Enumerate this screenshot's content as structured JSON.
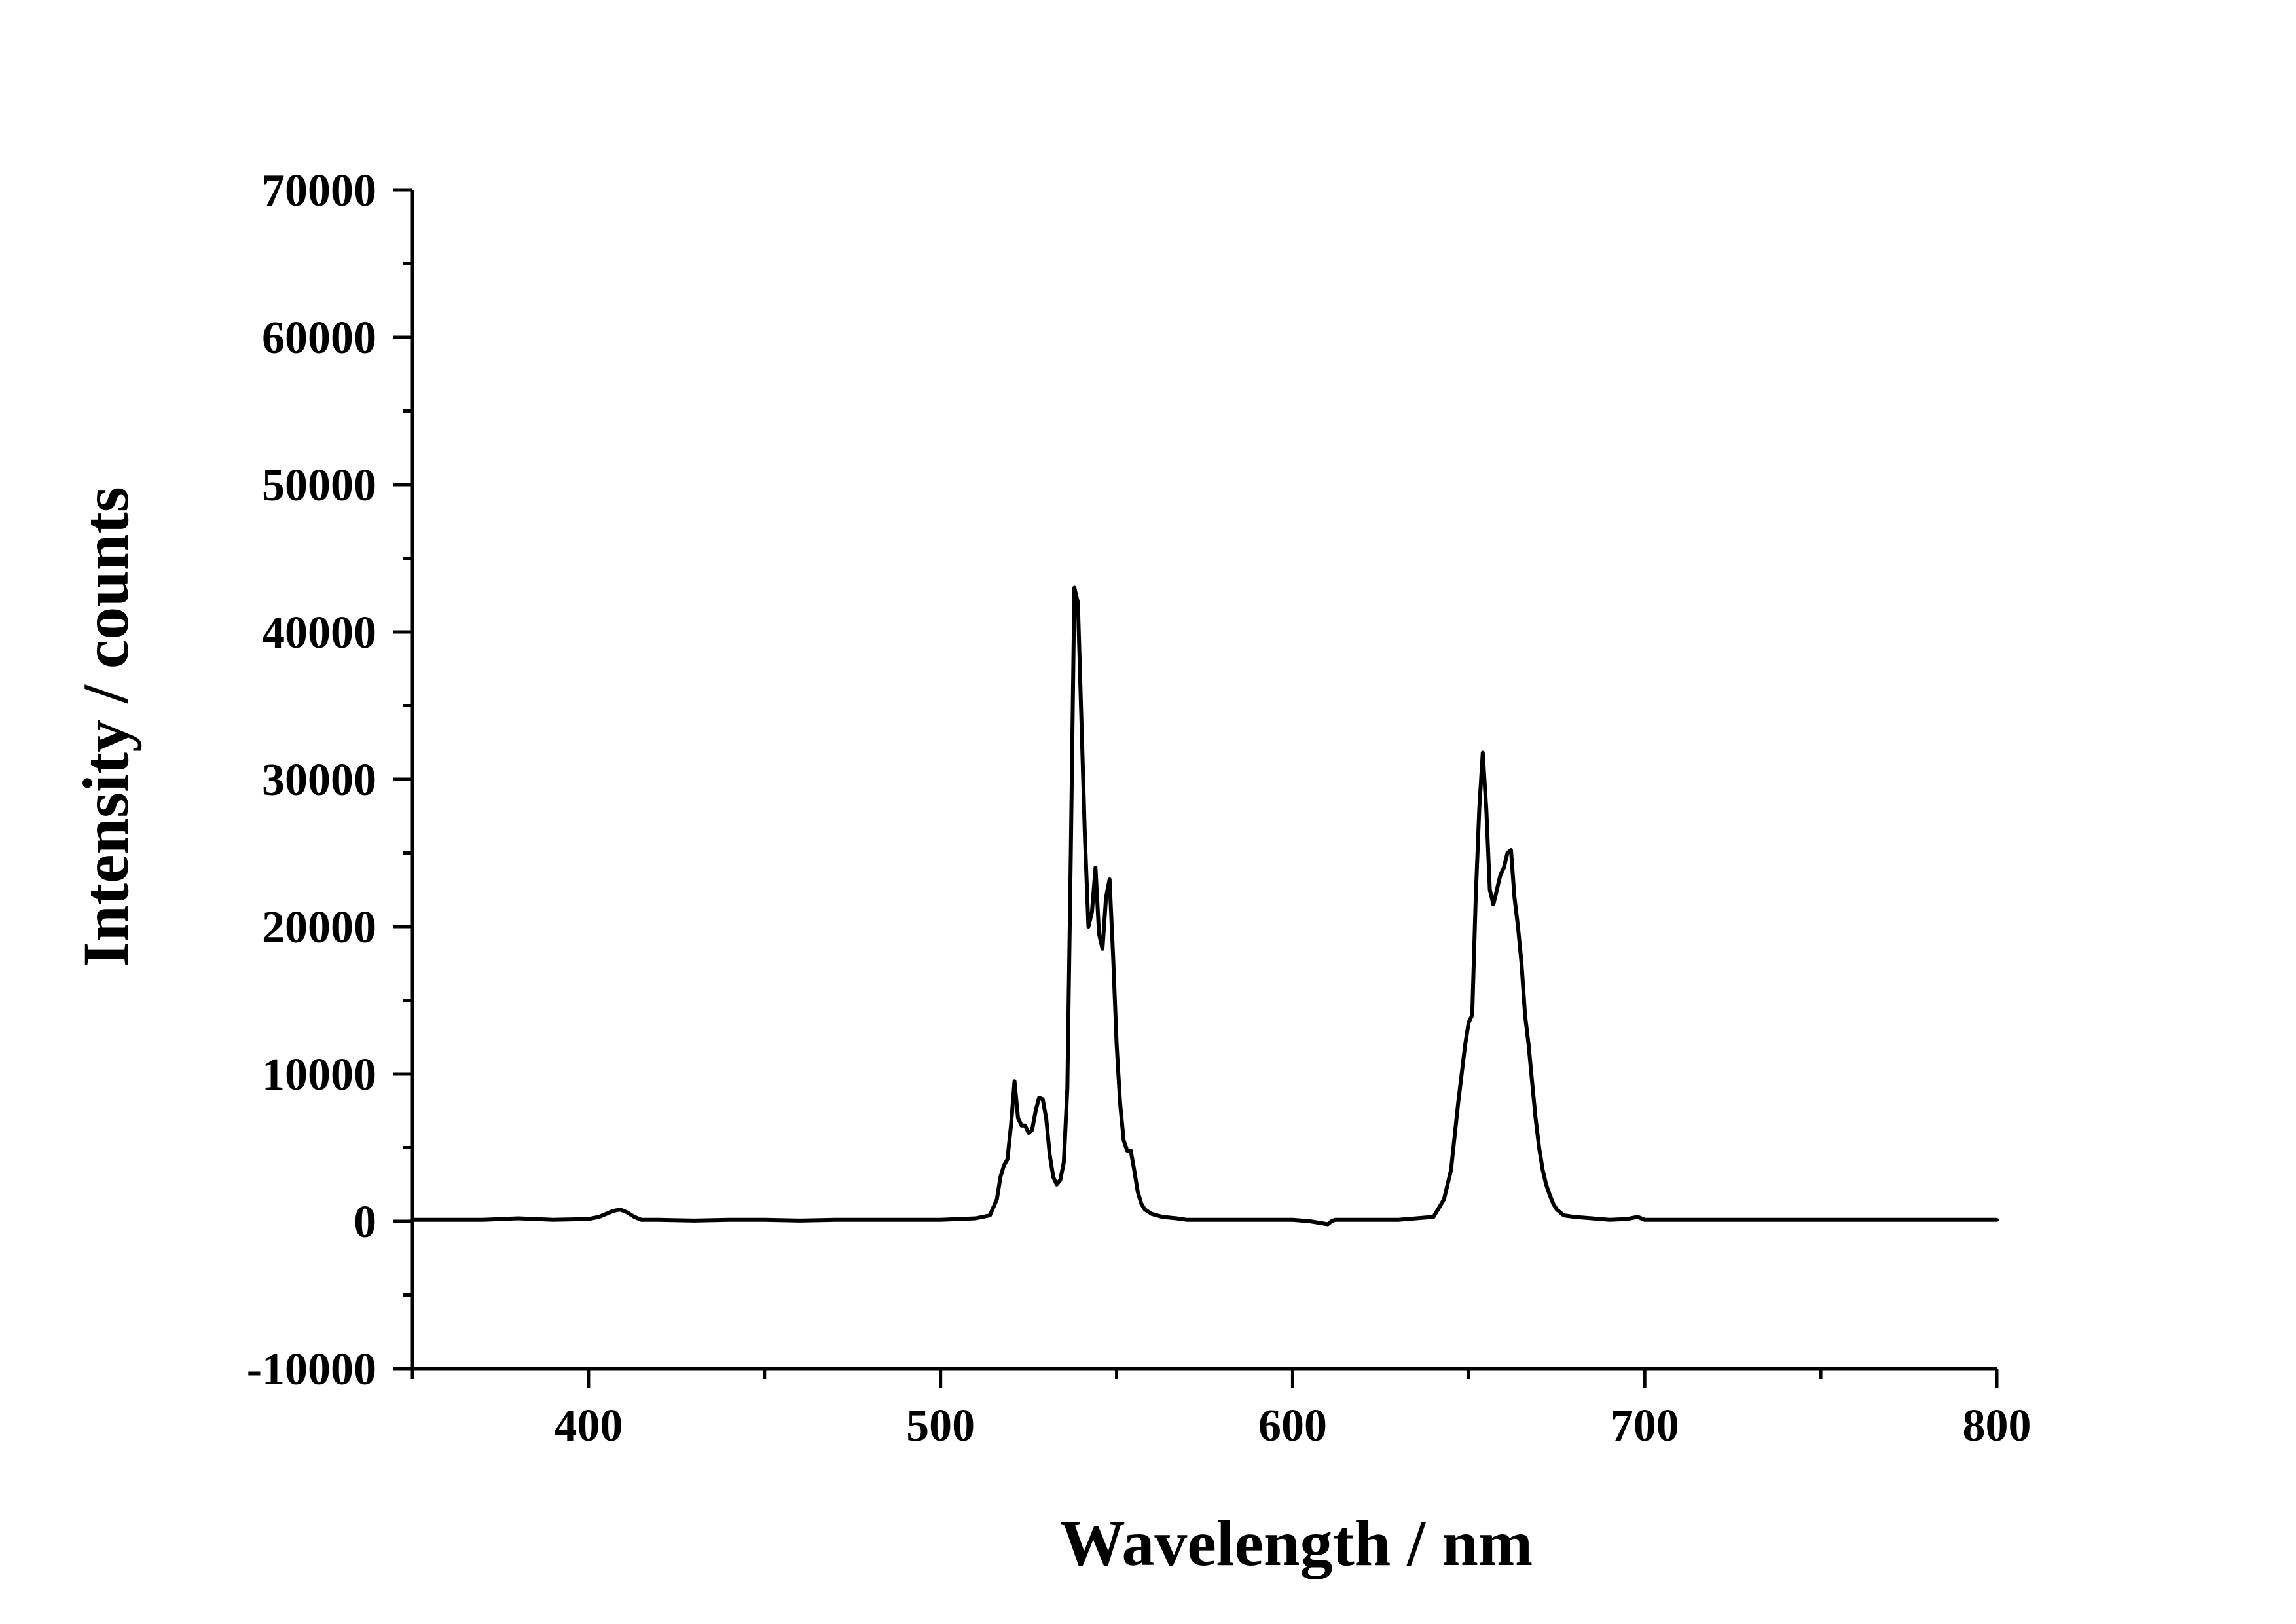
{
  "chart_data": {
    "type": "line",
    "title": "",
    "xlabel": "Wavelength / nm",
    "ylabel": "Intensity / counts",
    "xlim": [
      350,
      800
    ],
    "ylim": [
      -10000,
      70000
    ],
    "x_ticks": [
      400,
      500,
      600,
      700,
      800
    ],
    "x_minor_ticks": [
      350,
      450,
      550,
      650,
      750
    ],
    "y_ticks": [
      -10000,
      0,
      10000,
      20000,
      30000,
      40000,
      50000,
      60000,
      70000
    ],
    "y_minor_ticks": [
      -5000,
      5000,
      15000,
      25000,
      35000,
      45000,
      55000,
      65000
    ],
    "grid": false,
    "legend": "none",
    "line_color": "#000000",
    "series": [
      {
        "x": [
          350,
          360,
          370,
          380,
          390,
          400,
          403,
          405,
          407,
          409,
          411,
          413,
          415,
          420,
          430,
          440,
          450,
          460,
          470,
          480,
          490,
          500,
          505,
          510,
          514,
          516,
          517,
          518,
          519,
          520,
          521,
          522,
          523,
          524,
          525,
          526,
          527,
          528,
          529,
          530,
          531,
          532,
          533,
          534,
          535,
          536,
          537,
          538,
          539,
          540,
          541,
          542,
          543,
          544,
          545,
          546,
          547,
          548,
          549,
          550,
          551,
          552,
          553,
          554,
          555,
          556,
          557,
          558,
          560,
          563,
          567,
          570,
          580,
          590,
          600,
          605,
          610,
          611,
          612,
          615,
          620,
          630,
          640,
          643,
          645,
          647,
          649,
          650,
          651,
          652,
          653,
          654,
          655,
          656,
          657,
          658,
          659,
          660,
          661,
          662,
          663,
          664,
          665,
          666,
          667,
          668,
          669,
          670,
          671,
          672,
          673,
          674,
          675,
          677,
          680,
          685,
          690,
          695,
          698,
          700,
          710,
          720,
          730,
          740,
          750,
          760,
          770,
          780,
          790,
          800
        ],
        "y": [
          100,
          100,
          100,
          200,
          100,
          150,
          300,
          500,
          700,
          800,
          600,
          300,
          100,
          100,
          50,
          100,
          100,
          50,
          100,
          100,
          100,
          100,
          150,
          200,
          400,
          1500,
          3000,
          3800,
          4200,
          6500,
          9500,
          7000,
          6500,
          6500,
          6000,
          6200,
          7500,
          8400,
          8300,
          7000,
          4500,
          3000,
          2500,
          2800,
          4000,
          9000,
          25000,
          43000,
          42000,
          34000,
          26000,
          20000,
          21000,
          24000,
          19500,
          18500,
          22000,
          23200,
          18000,
          12000,
          8000,
          5500,
          4800,
          4800,
          3500,
          2000,
          1200,
          800,
          500,
          300,
          200,
          100,
          100,
          100,
          100,
          0,
          -200,
          0,
          100,
          100,
          100,
          100,
          300,
          1500,
          3500,
          8000,
          12000,
          13500,
          14000,
          22000,
          28000,
          31800,
          28000,
          22500,
          21500,
          22500,
          23500,
          24000,
          25000,
          25200,
          22000,
          20000,
          17500,
          14000,
          12000,
          9500,
          7000,
          5000,
          3500,
          2500,
          1800,
          1200,
          800,
          400,
          300,
          200,
          100,
          150,
          300,
          100,
          100,
          100,
          100,
          100,
          100,
          100,
          100,
          100,
          100,
          100
        ]
      }
    ]
  }
}
